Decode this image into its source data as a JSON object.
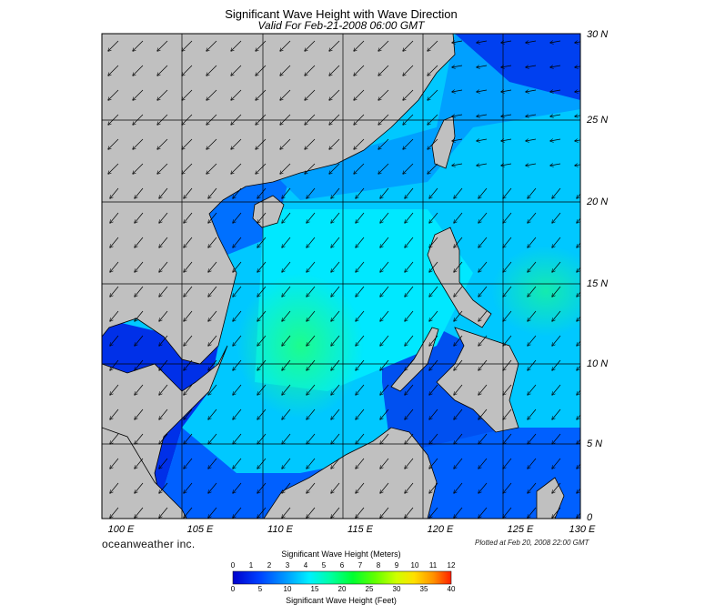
{
  "header": {
    "title": "Significant Wave Height with Wave Direction",
    "subtitle": "Valid For Feb-21-2008 06:00 GMT"
  },
  "axes": {
    "lat_labels": [
      "30 N",
      "25 N",
      "20 N",
      "15 N",
      "10 N",
      "5 N",
      "0"
    ],
    "lat_values": [
      30,
      25,
      20,
      15,
      10,
      5,
      0
    ],
    "lon_labels": [
      "100 E",
      "105 E",
      "110 E",
      "115 E",
      "120 E",
      "125 E",
      "130 E"
    ],
    "lon_values": [
      100,
      105,
      110,
      115,
      120,
      125,
      130
    ],
    "lat_range": [
      0,
      30
    ],
    "lon_range": [
      100,
      130
    ]
  },
  "footer": {
    "logo": "oceanweather inc.",
    "plotted": "Plotted at Feb 20, 2008 22:00 GMT"
  },
  "colorbar": {
    "meters_title": "Significant Wave Height (Meters)",
    "feet_title": "Significant Wave Height (Feet)",
    "meters_ticks": [
      "0",
      "1",
      "2",
      "3",
      "4",
      "5",
      "6",
      "7",
      "8",
      "9",
      "10",
      "11",
      "12"
    ],
    "feet_ticks": [
      "0",
      "5",
      "10",
      "15",
      "20",
      "25",
      "30",
      "35",
      "40"
    ],
    "colors": [
      "#0000cc",
      "#0040ff",
      "#0080ff",
      "#00c0ff",
      "#00ffff",
      "#00ff99",
      "#00ff33",
      "#40ff00",
      "#a0ff00",
      "#ffff00",
      "#ffc000",
      "#ff8000",
      "#ff3000"
    ]
  },
  "colors": {
    "land": "#c0c0c0",
    "deep_blue": "#0028e0",
    "mid_blue": "#0070ff",
    "cyan": "#00e0ff",
    "green": "#00f0a0",
    "arrow": "#000000"
  },
  "wave_direction": "from northeast"
}
